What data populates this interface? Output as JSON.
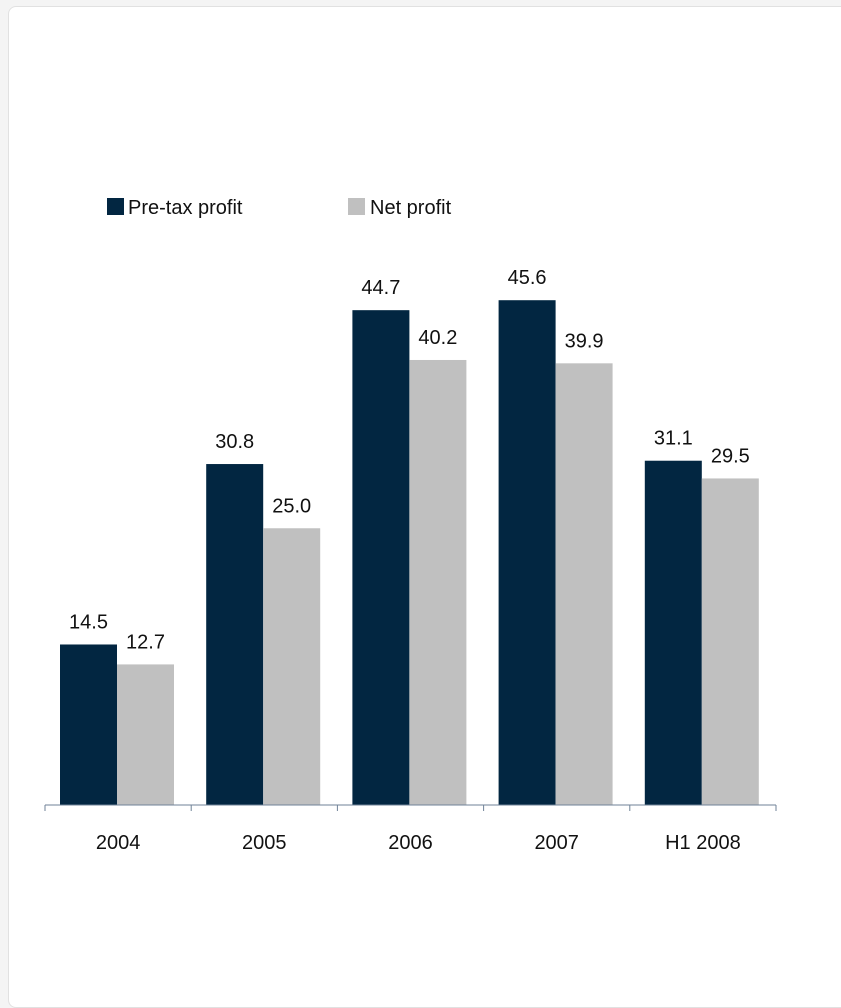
{
  "chart_data": {
    "type": "bar",
    "categories": [
      "2004",
      "2005",
      "2006",
      "2007",
      "H1 2008"
    ],
    "series": [
      {
        "name": "Pre-tax profit",
        "values": [
          14.5,
          30.8,
          44.7,
          45.6,
          31.1
        ],
        "labels": [
          "14.5",
          "30.8",
          "44.7",
          "45.6",
          "31.1"
        ],
        "color": "#022641"
      },
      {
        "name": "Net profit",
        "values": [
          12.7,
          25.0,
          40.2,
          39.9,
          29.5
        ],
        "labels": [
          "12.7",
          "25.0",
          "40.2",
          "39.9",
          "29.5"
        ],
        "color": "#c0c0c0"
      }
    ],
    "ylim": [
      0,
      50
    ],
    "grid": false,
    "legend": "top-left",
    "axis_color": "#6f8297"
  }
}
